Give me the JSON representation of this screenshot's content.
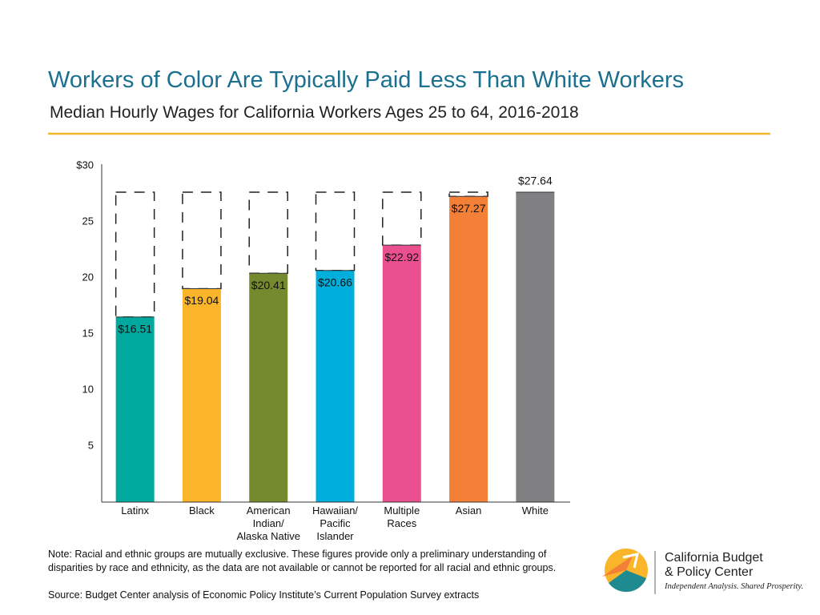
{
  "chart_data": {
    "type": "bar",
    "title": "Workers of Color Are Typically Paid Less Than White Workers",
    "subtitle": "Median Hourly Wages for California Workers Ages 25 to 64, 2016-2018",
    "categories": [
      "Latinx",
      "Black",
      "American\nIndian/\nAlaska Native",
      "Hawaiian/\nPacific\nIslander",
      "Multiple\nRaces",
      "Asian",
      "White"
    ],
    "values": [
      16.51,
      19.04,
      20.41,
      20.66,
      22.92,
      27.27,
      27.64
    ],
    "value_labels": [
      "$16.51",
      "$19.04",
      "$20.41",
      "$20.66",
      "$22.92",
      "$27.27",
      "$27.64"
    ],
    "colors": [
      "#00a99d",
      "#fbb52b",
      "#758a2e",
      "#00aedb",
      "#ea4f8f",
      "#f47f36",
      "#808083"
    ],
    "ylim": [
      0,
      30
    ],
    "yticks": [
      5,
      10,
      15,
      20,
      25,
      {
        "value": 30,
        "label": "$30"
      }
    ],
    "grid": false
  },
  "note": "Note: Racial and ethnic groups are mutually exclusive. These figures provide only a preliminary understanding of disparities by race and ethnicity, as the data are not available or cannot be reported for all racial and ethnic groups.",
  "source": "Source: Budget Center analysis of Economic Policy Institute’s Current Population Survey extracts",
  "logo": {
    "name": "California Budget\n& Policy Center",
    "tagline": "Independent Analysis. Shared Prosperity."
  }
}
